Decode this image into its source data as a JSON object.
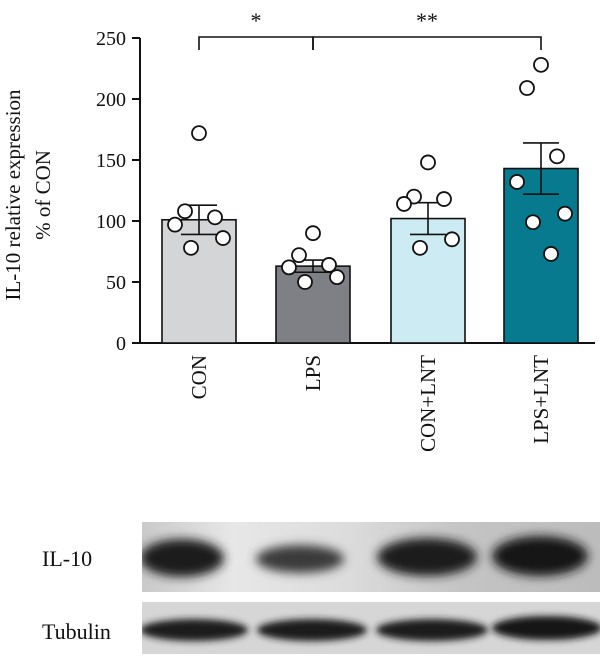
{
  "chart_data": {
    "type": "bar",
    "ylabel": "IL-10 relative expression\n% of CON",
    "ylim": [
      0,
      250
    ],
    "yticks": [
      0,
      50,
      100,
      150,
      200,
      250
    ],
    "categories": [
      "CON",
      "LPS",
      "CON+LNT",
      "LPS+LNT"
    ],
    "values": [
      101,
      63,
      102,
      143
    ],
    "errors": [
      12,
      5,
      13,
      21
    ],
    "bar_colors": [
      "#d4d5d7",
      "#7e8085",
      "#cdebf3",
      "#077a8f"
    ],
    "points": [
      [
        172,
        108,
        103,
        97,
        86,
        78
      ],
      [
        90,
        72,
        64,
        62,
        54,
        50
      ],
      [
        148,
        120,
        118,
        114,
        85,
        78
      ],
      [
        228,
        209,
        153,
        132,
        106,
        99,
        73
      ]
    ],
    "significance": [
      {
        "from": 0,
        "to": 1,
        "label": "*"
      },
      {
        "from": 1,
        "to": 3,
        "label": "**"
      }
    ]
  },
  "blots": {
    "il10_label": "IL-10",
    "tubulin_label": "Tubulin"
  }
}
